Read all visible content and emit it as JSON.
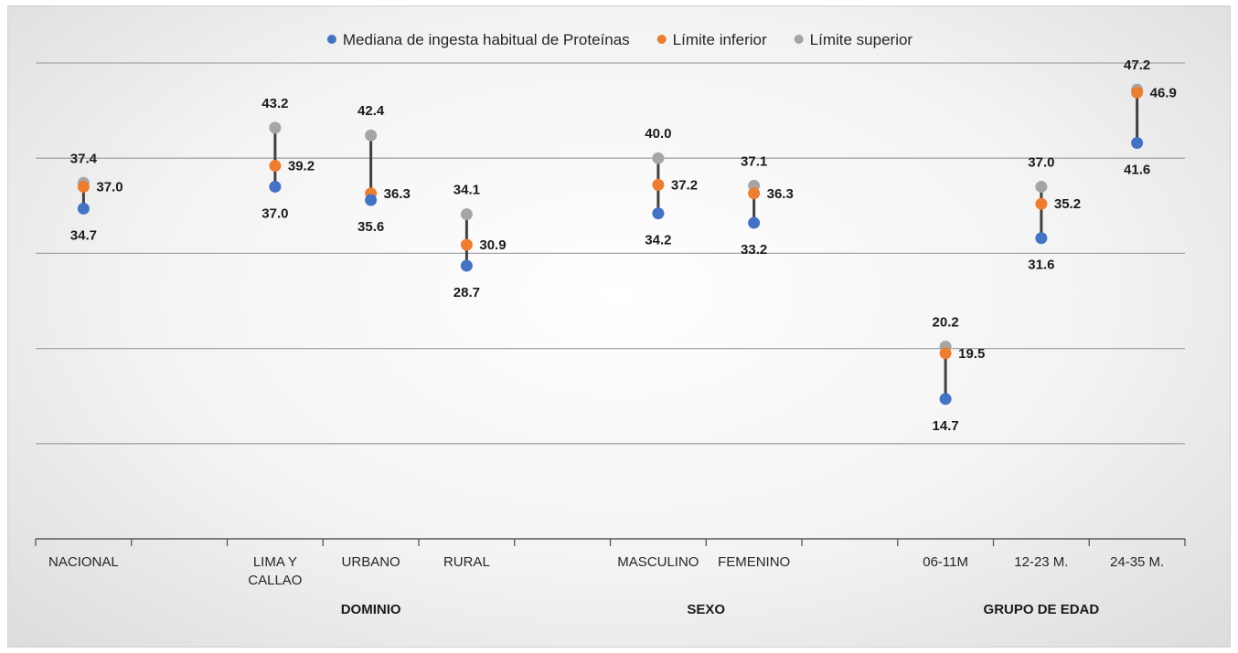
{
  "chart_data": {
    "type": "scatter",
    "title": "",
    "xlabel": "",
    "ylabel": "",
    "ylim": [
      0,
      50
    ],
    "grid": true,
    "legend_position": "top",
    "categories": [
      "NACIONAL",
      "",
      "LIMA Y CALLAO",
      "URBANO",
      "RURAL",
      "",
      "MASCULINO",
      "FEMENINO",
      "",
      "06-11M",
      "12-23 M.",
      "24-35 M."
    ],
    "groups": [
      {
        "label": "DOMINIO",
        "categories": [
          "LIMA Y CALLAO",
          "URBANO",
          "RURAL"
        ]
      },
      {
        "label": "SEXO",
        "categories": [
          "MASCULINO",
          "FEMENINO"
        ]
      },
      {
        "label": "GRUPO DE  EDAD",
        "categories": [
          "06-11M",
          "12-23 M.",
          "24-35 M."
        ]
      }
    ],
    "series": [
      {
        "name": "Mediana de ingesta habitual de Proteínas",
        "color": "#4472c4",
        "values": [
          34.7,
          null,
          37.0,
          35.6,
          28.7,
          null,
          34.2,
          33.2,
          null,
          14.7,
          31.6,
          41.6
        ]
      },
      {
        "name": "Límite inferior",
        "color": "#ed7d31",
        "values": [
          37.0,
          null,
          39.2,
          36.3,
          30.9,
          null,
          37.2,
          36.3,
          null,
          19.5,
          35.2,
          46.9
        ]
      },
      {
        "name": "Límite superior",
        "color": "#a5a5a5",
        "values": [
          37.4,
          null,
          43.2,
          42.4,
          34.1,
          null,
          40.0,
          37.1,
          null,
          20.2,
          37.0,
          47.2
        ]
      }
    ],
    "value_labels": {
      "median": [
        "34.7",
        "",
        "37.0",
        "35.6",
        "28.7",
        "",
        "34.2",
        "33.2",
        "",
        "14.7",
        "31.6",
        "41.6"
      ],
      "lower": [
        "37.0",
        "",
        "39.2",
        "36.3",
        "30.9",
        "",
        "37.2",
        "36.3",
        "",
        "19.5",
        "35.2",
        "46.9"
      ],
      "upper": [
        "37.4",
        "",
        "43.2",
        "42.4",
        "34.1",
        "",
        "40.0",
        "37.1",
        "",
        "20.2",
        "37.0",
        "47.2"
      ]
    },
    "tick_label_lines": [
      [
        "NACIONAL"
      ],
      [],
      [
        "LIMA Y",
        "CALLAO"
      ],
      [
        "URBANO"
      ],
      [
        "RURAL"
      ],
      [],
      [
        "MASCULINO"
      ],
      [
        "FEMENINO"
      ],
      [],
      [
        "06-11M"
      ],
      [
        "12-23 M."
      ],
      [
        "24-35 M."
      ]
    ]
  }
}
